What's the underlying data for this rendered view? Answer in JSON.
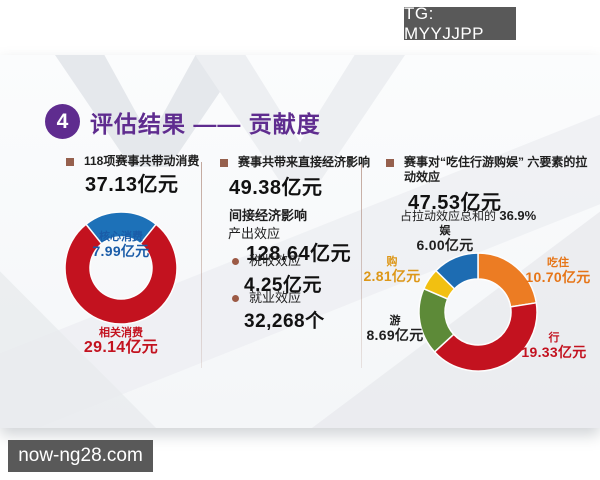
{
  "badges": {
    "tg": "TG: MYYJJPP",
    "watermark": "now-ng28.com"
  },
  "header": {
    "number": "4",
    "title": "评估结果 —— 贡献度"
  },
  "col_consumption": {
    "heading": "118项赛事共带动消费",
    "total": "37.13亿元"
  },
  "col_economic": {
    "heading": "赛事共带来直接经济影响",
    "direct_value": "49.38亿元",
    "indirect_heading": "间接经济影响",
    "output_label": "产出效应",
    "output_value": "128.64亿元",
    "tax_label": "税收效应",
    "tax_value": "4.25亿元",
    "employment_label": "就业效应",
    "employment_value": "32,268个"
  },
  "col_six_elements": {
    "heading": "赛事对“吃住行游购娱” 六要素的拉动效应",
    "total": "47.53亿元",
    "share_prefix": "占拉动效应总和的",
    "share_value": "36.9%"
  },
  "chart_data": [
    {
      "type": "pie",
      "subtype": "donut",
      "title": "118项赛事共带动消费 37.13亿元",
      "unit": "亿元",
      "total": 37.13,
      "start_angle_deg": -38.7,
      "series": [
        {
          "name": "核心消费",
          "value": 7.99,
          "display": "7.99亿元",
          "color": "#1d71b8",
          "label_color": "#1a5ca8"
        },
        {
          "name": "相关消费",
          "value": 29.14,
          "display": "29.14亿元",
          "color": "#c3121f",
          "label_color": "#c3121f"
        }
      ]
    },
    {
      "type": "pie",
      "subtype": "donut",
      "title": "赛事对“吃住行游购娱”六要素的拉动效应 47.53亿元",
      "unit": "亿元",
      "total": 47.53,
      "share_of_pull_total": "36.9%",
      "start_angle_deg": 0,
      "series": [
        {
          "name": "吃住",
          "value": 10.7,
          "display": "10.70亿元",
          "color": "#ec7c23",
          "label_color": "#e67517"
        },
        {
          "name": "行",
          "value": 19.33,
          "display": "19.33亿元",
          "color": "#c3121f",
          "label_color": "#c3121f"
        },
        {
          "name": "游",
          "value": 8.69,
          "display": "8.69亿元",
          "color": "#5d8a38",
          "label_color": "#1f1f1f"
        },
        {
          "name": "购",
          "value": 2.81,
          "display": "2.81亿元",
          "color": "#f2c011",
          "label_color": "#dd9718"
        },
        {
          "name": "娱",
          "value": 6.0,
          "display": "6.00亿元",
          "color": "#1d6cb2",
          "label_color": "#1f1f1f"
        }
      ]
    }
  ]
}
